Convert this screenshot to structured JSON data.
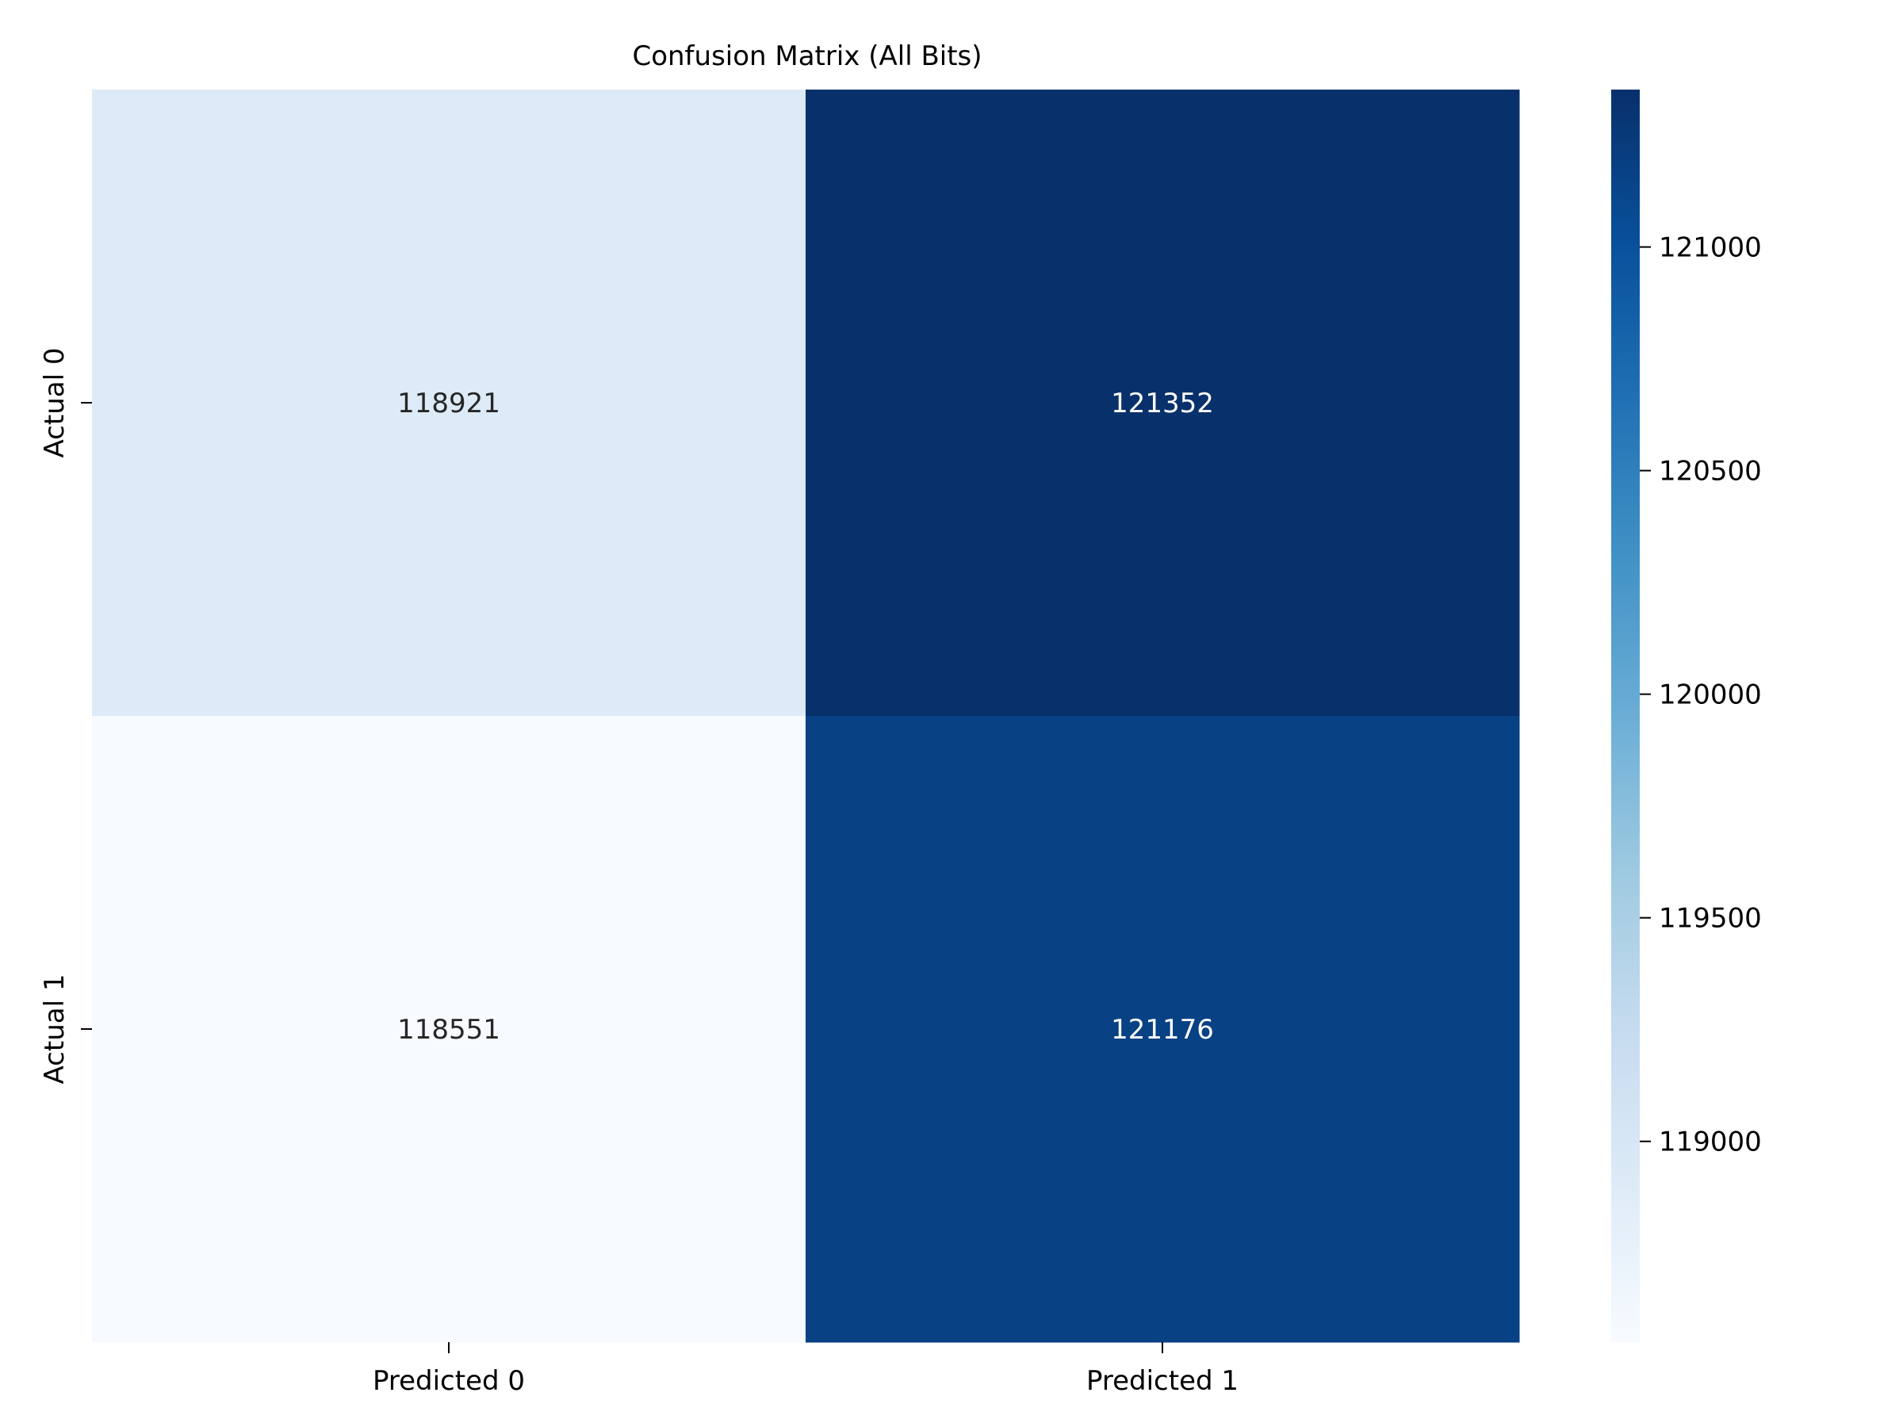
{
  "chart_data": {
    "type": "heatmap",
    "title": "Confusion Matrix (All Bits)",
    "xlabel": "",
    "ylabel": "",
    "x_categories": [
      "Predicted 0",
      "Predicted 1"
    ],
    "y_categories": [
      "Actual 0",
      "Actual 1"
    ],
    "values": [
      [
        118921,
        121352
      ],
      [
        118551,
        121176
      ]
    ],
    "colormap": "Blues",
    "colorbar": {
      "range": [
        118551,
        121352
      ],
      "ticks": [
        119000,
        119500,
        120000,
        120500,
        121000
      ],
      "tick_labels": [
        "119000",
        "119500",
        "120000",
        "120500",
        "121000"
      ]
    },
    "grid": false,
    "legend": "none"
  }
}
